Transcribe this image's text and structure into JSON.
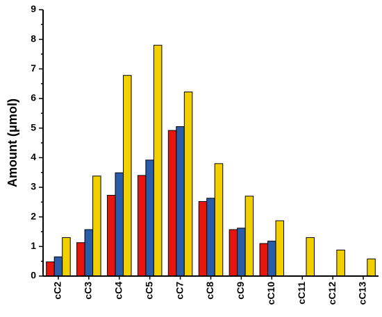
{
  "chart_data": {
    "type": "bar",
    "y_label": "Amount (μmol)",
    "categories": [
      "cC2",
      "cC3",
      "cC4",
      "cC5",
      "cC7",
      "cC8",
      "cC9",
      "cC10",
      "cC11",
      "cC12",
      "cC13"
    ],
    "series": [
      {
        "color": "#e8140e",
        "values": [
          0.48,
          1.13,
          2.73,
          3.4,
          4.92,
          2.52,
          1.57,
          1.1,
          null,
          null,
          null
        ]
      },
      {
        "color": "#2a5ca8",
        "values": [
          0.65,
          1.57,
          3.49,
          3.92,
          5.05,
          2.63,
          1.62,
          1.18,
          null,
          null,
          null
        ]
      },
      {
        "color": "#f2d000",
        "values": [
          1.3,
          3.38,
          6.78,
          7.8,
          6.22,
          3.8,
          2.7,
          1.87,
          1.3,
          0.88,
          0.58
        ]
      }
    ],
    "ylim": [
      0,
      9
    ],
    "yticks": [
      0,
      1,
      2,
      3,
      4,
      5,
      6,
      7,
      8,
      9
    ],
    "grid": false
  }
}
